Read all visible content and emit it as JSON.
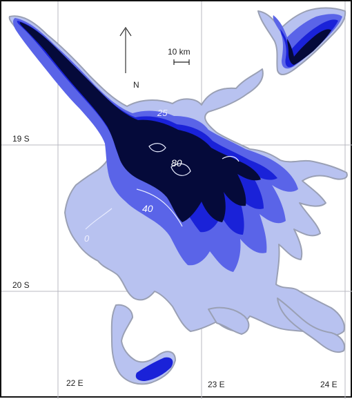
{
  "map": {
    "latitude_labels": [
      "19 S",
      "20 S"
    ],
    "longitude_labels": [
      "22 E",
      "23 E",
      "24 E"
    ],
    "north_label": "N",
    "scale_label": "10 km",
    "contour_labels": [
      "80",
      "40",
      "0",
      "25"
    ],
    "colors": {
      "background": "#ffffff",
      "flood_light": "#b8c2f0",
      "flood_mid": "#5a64e8",
      "flood_strong": "#1a22d8",
      "flood_deep": "#050a3a",
      "outline": "#9aa0b4",
      "grid": "#b8b8c0"
    }
  }
}
